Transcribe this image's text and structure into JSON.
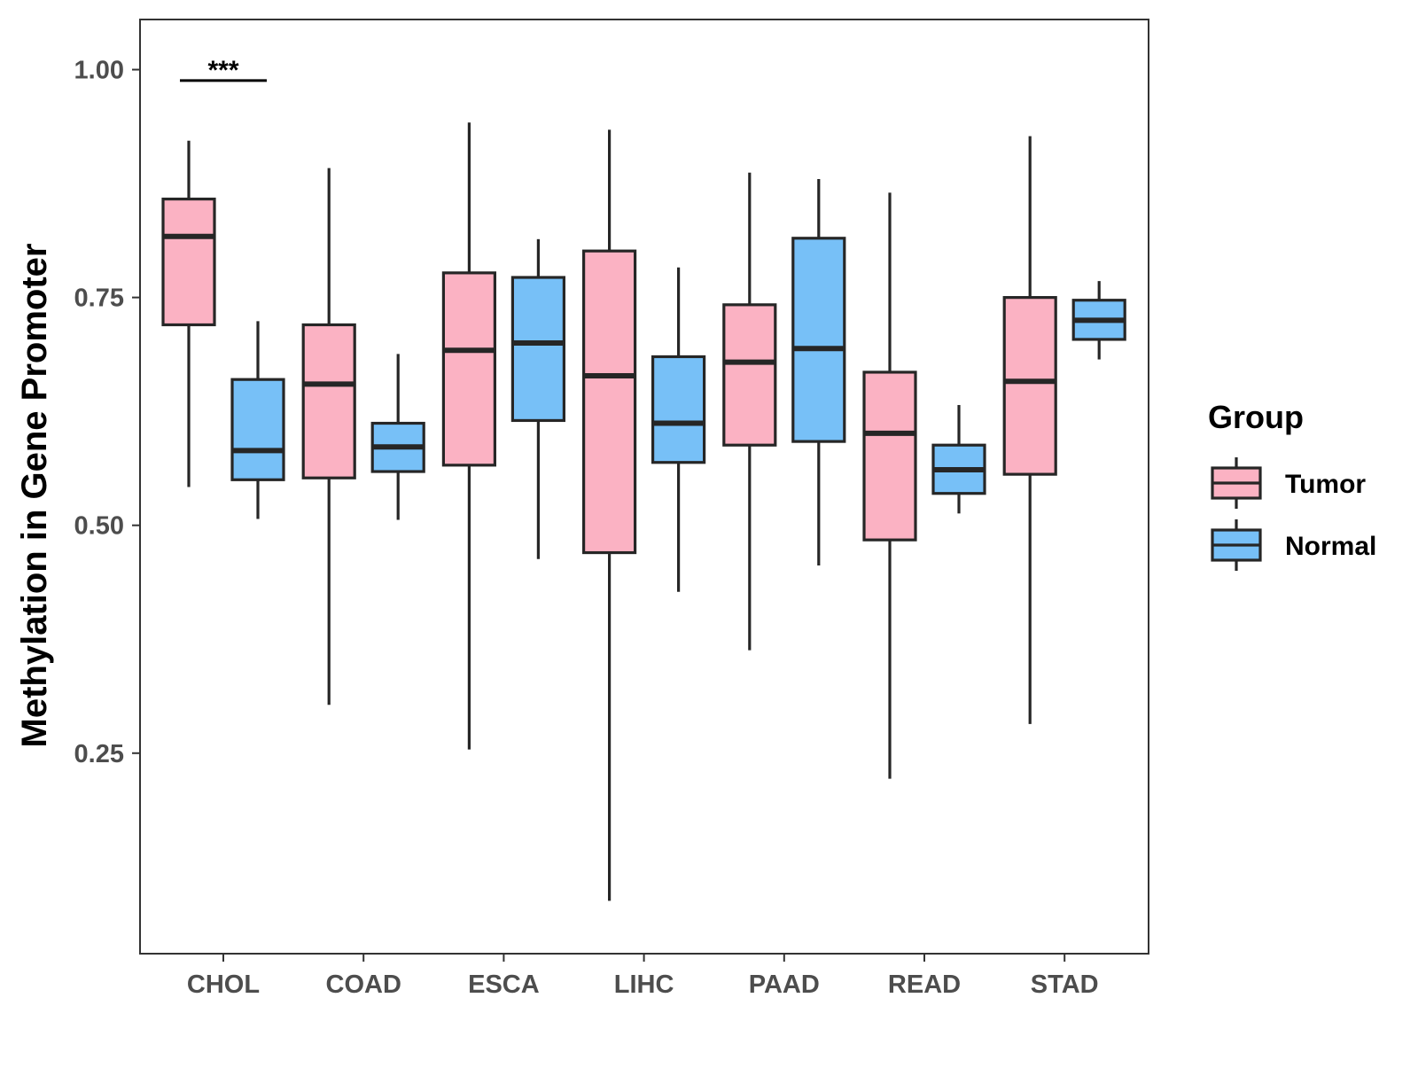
{
  "chart_data": {
    "type": "boxplot",
    "title": "",
    "xlabel": "",
    "ylabel": "Methylation in Gene Promoter",
    "ylim": [
      0.03,
      1.055
    ],
    "yticks": [
      0.25,
      0.5,
      0.75,
      1.0
    ],
    "ytick_labels": [
      "0.25",
      "0.50",
      "0.75",
      "1.00"
    ],
    "grid": false,
    "categories": [
      "CHOL",
      "COAD",
      "ESCA",
      "LIHC",
      "PAAD",
      "READ",
      "STAD"
    ],
    "legend": {
      "title": "Group",
      "position": "right",
      "entries": [
        {
          "name": "Tumor",
          "color": "#FBB2C3"
        },
        {
          "name": "Normal",
          "color": "#77C0F7"
        }
      ]
    },
    "series": [
      {
        "name": "Tumor",
        "color": "#FBB2C3",
        "boxes": [
          {
            "category": "CHOL",
            "min": 0.542,
            "q1": 0.72,
            "median": 0.817,
            "q3": 0.858,
            "max": 0.922
          },
          {
            "category": "COAD",
            "min": 0.303,
            "q1": 0.552,
            "median": 0.655,
            "q3": 0.72,
            "max": 0.892
          },
          {
            "category": "ESCA",
            "min": 0.254,
            "q1": 0.566,
            "median": 0.692,
            "q3": 0.777,
            "max": 0.942
          },
          {
            "category": "LIHC",
            "min": 0.088,
            "q1": 0.47,
            "median": 0.664,
            "q3": 0.801,
            "max": 0.934
          },
          {
            "category": "PAAD",
            "min": 0.363,
            "q1": 0.588,
            "median": 0.679,
            "q3": 0.742,
            "max": 0.887
          },
          {
            "category": "READ",
            "min": 0.222,
            "q1": 0.484,
            "median": 0.601,
            "q3": 0.668,
            "max": 0.865
          },
          {
            "category": "STAD",
            "min": 0.282,
            "q1": 0.556,
            "median": 0.658,
            "q3": 0.75,
            "max": 0.927
          }
        ]
      },
      {
        "name": "Normal",
        "color": "#77C0F7",
        "boxes": [
          {
            "category": "CHOL",
            "min": 0.507,
            "q1": 0.55,
            "median": 0.582,
            "q3": 0.66,
            "max": 0.724
          },
          {
            "category": "COAD",
            "min": 0.506,
            "q1": 0.559,
            "median": 0.586,
            "q3": 0.612,
            "max": 0.688
          },
          {
            "category": "ESCA",
            "min": 0.463,
            "q1": 0.615,
            "median": 0.7,
            "q3": 0.772,
            "max": 0.814
          },
          {
            "category": "LIHC",
            "min": 0.427,
            "q1": 0.569,
            "median": 0.612,
            "q3": 0.685,
            "max": 0.783
          },
          {
            "category": "PAAD",
            "min": 0.456,
            "q1": 0.592,
            "median": 0.694,
            "q3": 0.815,
            "max": 0.88
          },
          {
            "category": "READ",
            "min": 0.513,
            "q1": 0.535,
            "median": 0.561,
            "q3": 0.588,
            "max": 0.632
          },
          {
            "category": "STAD",
            "min": 0.682,
            "q1": 0.704,
            "median": 0.725,
            "q3": 0.747,
            "max": 0.768
          }
        ]
      }
    ],
    "annotations": [
      {
        "category": "CHOL",
        "text": "***",
        "y": 0.988
      }
    ]
  }
}
